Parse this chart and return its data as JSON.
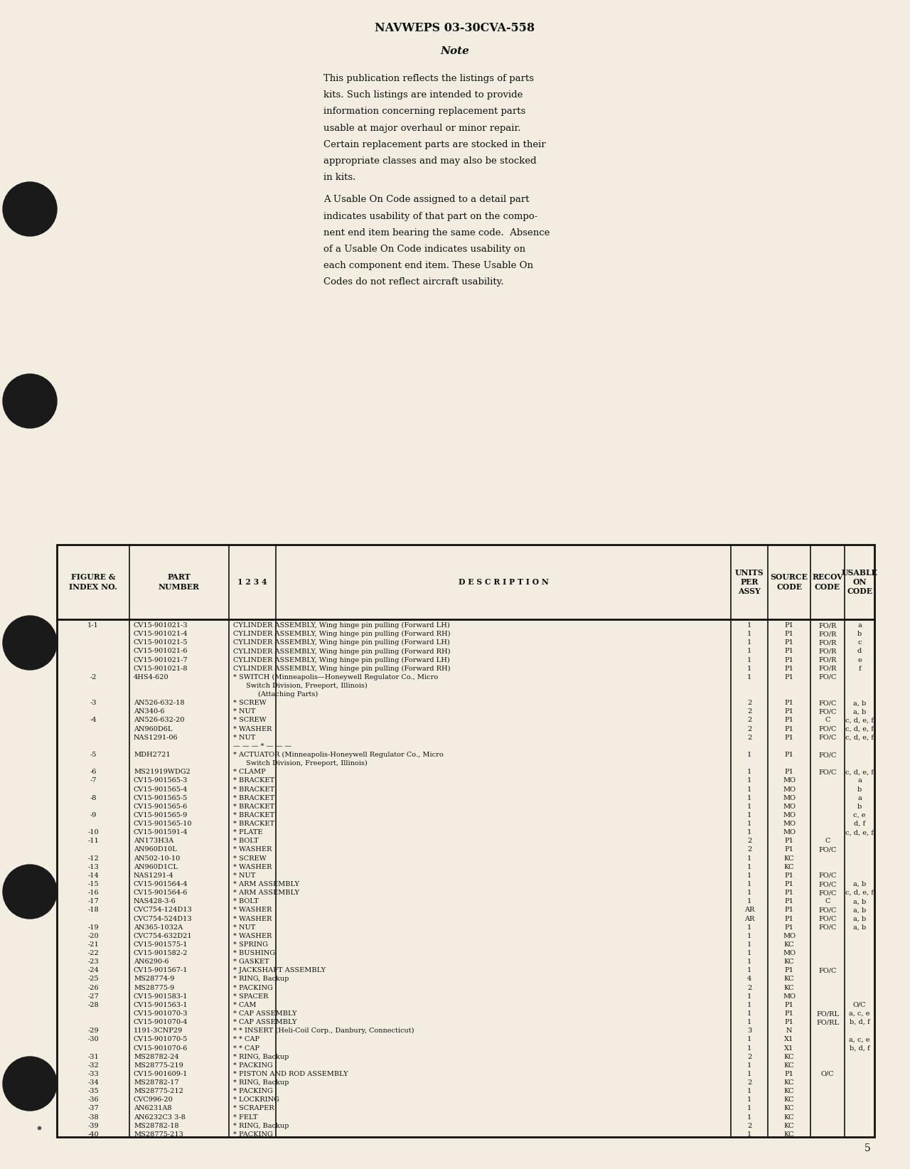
{
  "title": "NAVWEPS 03-30CVA-558",
  "note_title": "Note",
  "para1_lines": [
    "This publication reflects the listings of parts",
    "kits. Such listings are intended to provide",
    "information concerning replacement parts",
    "usable at major overhaul or minor repair.",
    "Certain replacement parts are stocked in their",
    "appropriate classes and may also be stocked",
    "in kits."
  ],
  "para2_lines": [
    "A Usable On Code assigned to a detail part",
    "indicates usability of that part on the compo-",
    "nent end item bearing the same code.  Absence",
    "of a Usable On Code indicates usability on",
    "each component end item. These Usable On",
    "Codes do not reflect aircraft usability."
  ],
  "rows": [
    [
      "1-1",
      "CV15-901021-3",
      "CYLINDER ASSEMBLY, Wing hinge pin pulling (Forward LH)",
      "1",
      "P1",
      "FO/R",
      "a"
    ],
    [
      "",
      "CV15-901021-4",
      "CYLINDER ASSEMBLY, Wing hinge pin pulling (Forward RH)",
      "1",
      "P1",
      "FO/R",
      "b"
    ],
    [
      "",
      "CV15-901021-5",
      "CYLINDER ASSEMBLY, Wing hinge pin pulling (Forward LH)",
      "1",
      "P1",
      "FO/R",
      "c"
    ],
    [
      "",
      "CV15-901021-6",
      "CYLINDER ASSEMBLY, Wing hinge pin pulling (Forward RH)",
      "1",
      "P1",
      "FO/R",
      "d"
    ],
    [
      "",
      "CV15-901021-7",
      "CYLINDER ASSEMBLY, Wing hinge pin pulling (Forward LH)",
      "1",
      "P1",
      "FO/R",
      "e"
    ],
    [
      "",
      "CV15-901021-8",
      "CYLINDER ASSEMBLY, Wing hinge pin pulling (Forward RH)",
      "1",
      "P1",
      "FO/R",
      "f"
    ],
    [
      "-2",
      "4HS4-620",
      "* SWITCH (Minneapolis—Honeywell Regulator Co., Micro",
      "1",
      "P1",
      "FO/C",
      ""
    ],
    [
      "",
      "",
      "Switch Division, Freeport, Illinois)",
      "",
      "",
      "",
      ""
    ],
    [
      "",
      "",
      "(Attaching Parts)",
      "",
      "",
      "",
      ""
    ],
    [
      "-3",
      "AN526-632-18",
      "* SCREW",
      "2",
      "P1",
      "FO/C",
      "a, b"
    ],
    [
      "",
      "AN340-6",
      "* NUT",
      "2",
      "P1",
      "FO/C",
      "a, b"
    ],
    [
      "-4",
      "AN526-632-20",
      "* SCREW",
      "2",
      "P1",
      "C",
      "c, d, e, f"
    ],
    [
      "",
      "AN960D6L",
      "* WASHER",
      "2",
      "P1",
      "FO/C",
      "c, d, e, f"
    ],
    [
      "",
      "NAS1291-06",
      "* NUT",
      "2",
      "P1",
      "FO/C",
      "c, d, e, f"
    ],
    [
      "",
      "",
      "— — — * — — —",
      "",
      "",
      "",
      ""
    ],
    [
      "-5",
      "MDH2721",
      "* ACTUATOR (Minneapolis-Honeywell Regulator Co., Micro",
      "1",
      "P1",
      "FO/C",
      ""
    ],
    [
      "",
      "",
      "Switch Division, Freeport, Illinois)",
      "",
      "",
      "",
      ""
    ],
    [
      "-6",
      "MS21919WDG2",
      "* CLAMP",
      "1",
      "P1",
      "FO/C",
      "c, d, e, f"
    ],
    [
      "-7",
      "CV15-901565-3",
      "* BRACKET",
      "1",
      "MO",
      "",
      "a"
    ],
    [
      "",
      "CV15-901565-4",
      "* BRACKET",
      "1",
      "MO",
      "",
      "b"
    ],
    [
      "-8",
      "CV15-901565-5",
      "* BRACKET",
      "1",
      "MO",
      "",
      "a"
    ],
    [
      "",
      "CV15-901565-6",
      "* BRACKET",
      "1",
      "MO",
      "",
      "b"
    ],
    [
      "-9",
      "CV15-901565-9",
      "* BRACKET",
      "1",
      "MO",
      "",
      "c, e"
    ],
    [
      "",
      "CV15-901565-10",
      "* BRACKET",
      "1",
      "MO",
      "",
      "d, f"
    ],
    [
      "-10",
      "CV15-901591-4",
      "* PLATE",
      "1",
      "MO",
      "",
      "c, d, e, f"
    ],
    [
      "-11",
      "AN173H3A",
      "* BOLT",
      "2",
      "P1",
      "C",
      ""
    ],
    [
      "",
      "AN960D10L",
      "* WASHER",
      "2",
      "P1",
      "FO/C",
      ""
    ],
    [
      "-12",
      "AN502-10-10",
      "* SCREW",
      "1",
      "KC",
      "",
      ""
    ],
    [
      "-13",
      "AN960D1CL",
      "* WASHER",
      "1",
      "KC",
      "",
      ""
    ],
    [
      "-14",
      "NAS1291-4",
      "* NUT",
      "1",
      "P1",
      "FO/C",
      ""
    ],
    [
      "-15",
      "CV15-901564-4",
      "* ARM ASSEMBLY",
      "1",
      "P1",
      "FO/C",
      "a, b"
    ],
    [
      "-16",
      "CV15-901564-6",
      "* ARM ASSEMBLY",
      "1",
      "P1",
      "FO/C",
      "c, d, e, f"
    ],
    [
      "-17",
      "NAS428-3-6",
      "* BOLT",
      "1",
      "P1",
      "C",
      "a, b"
    ],
    [
      "-18",
      "CVC754-124D13",
      "* WASHER",
      "AR",
      "P1",
      "FO/C",
      "a, b"
    ],
    [
      "",
      "CVC754-524D13",
      "* WASHER",
      "AR",
      "P1",
      "FO/C",
      "a, b"
    ],
    [
      "-19",
      "AN365-1032A",
      "* NUT",
      "1",
      "P1",
      "FO/C",
      "a, b"
    ],
    [
      "-20",
      "CVC754-632D21",
      "* WASHER",
      "1",
      "MO",
      "",
      ""
    ],
    [
      "-21",
      "CV15-901575-1",
      "* SPRING",
      "1",
      "KC",
      "",
      ""
    ],
    [
      "-22",
      "CV15-901582-2",
      "* BUSHING",
      "1",
      "MO",
      "",
      ""
    ],
    [
      "-23",
      "AN6290-6",
      "* GASKET",
      "1",
      "KC",
      "",
      ""
    ],
    [
      "-24",
      "CV15-901567-1",
      "* JACKSHAFT ASSEMBLY",
      "1",
      "P1",
      "FO/C",
      ""
    ],
    [
      "-25",
      "MS28774-9",
      "* RING, Backup",
      "4",
      "KC",
      "",
      ""
    ],
    [
      "-26",
      "MS28775-9",
      "* PACKING",
      "2",
      "KC",
      "",
      ""
    ],
    [
      "-27",
      "CV15-901583-1",
      "* SPACER",
      "1",
      "MO",
      "",
      ""
    ],
    [
      "-28",
      "CV15-901563-1",
      "* CAM",
      "1",
      "P1",
      "",
      "O/C"
    ],
    [
      "",
      "CV15-901070-3",
      "* CAP ASSEMBLY",
      "1",
      "P1",
      "FO/RL",
      "a, c, e"
    ],
    [
      "",
      "CV15-901070-4",
      "* CAP ASSEMBLY",
      "1",
      "P1",
      "FO/RL",
      "b, d, f"
    ],
    [
      "-29",
      "1191-3CNP29",
      "* * INSERT (Heli-Coil Corp., Danbury, Connecticut)",
      "3",
      "N",
      "",
      ""
    ],
    [
      "-30",
      "CV15-901070-5",
      "* * CAP",
      "1",
      "X1",
      "",
      "a, c, e"
    ],
    [
      "",
      "CV15-901070-6",
      "* * CAP",
      "1",
      "X1",
      "",
      "b, d, f"
    ],
    [
      "-31",
      "MS28782-24",
      "* RING, Backup",
      "2",
      "KC",
      "",
      ""
    ],
    [
      "-32",
      "MS28775-219",
      "* PACKING",
      "1",
      "KC",
      "",
      ""
    ],
    [
      "-33",
      "CV15-901609-1",
      "* PISTON AND ROD ASSEMBLY",
      "1",
      "P1",
      "O/C",
      ""
    ],
    [
      "-34",
      "MS28782-17",
      "* RING, Backup",
      "2",
      "KC",
      "",
      ""
    ],
    [
      "-35",
      "MS28775-212",
      "* PACKING",
      "1",
      "KC",
      "",
      ""
    ],
    [
      "-36",
      "CVC996-20",
      "* LOCKRING",
      "1",
      "KC",
      "",
      ""
    ],
    [
      "-37",
      "AN6231A8",
      "* SCRAPER",
      "1",
      "KC",
      "",
      ""
    ],
    [
      "-38",
      "AN6232C3 3-8",
      "* FELT",
      "1",
      "KC",
      "",
      ""
    ],
    [
      "-39",
      "MS28782-18",
      "* RING, Backup",
      "2",
      "KC",
      "",
      ""
    ],
    [
      "-40",
      "MS28775-213",
      "* PACKING",
      "1",
      "KC",
      "",
      ""
    ]
  ],
  "page_number": "5",
  "bg_color": "#f2ede0",
  "text_color": "#111111"
}
